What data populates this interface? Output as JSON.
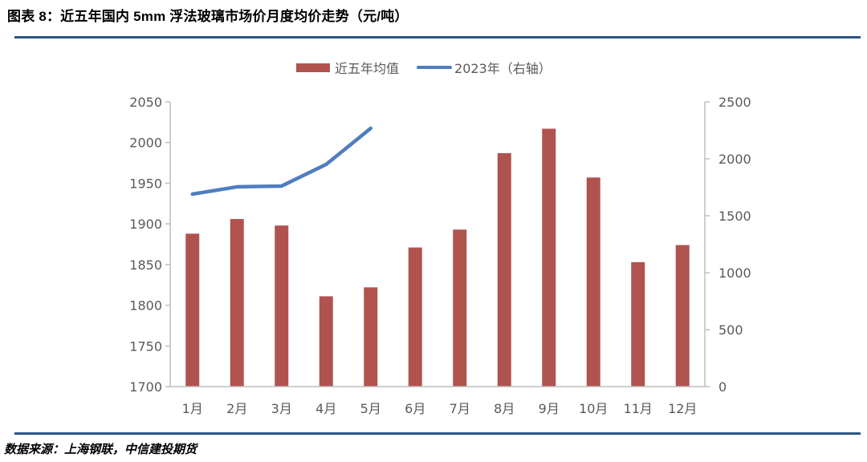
{
  "header": {
    "title": "图表 8：近五年国内 5mm 浮法玻璃市场价月度均价走势（元/吨）"
  },
  "footer": {
    "source": "数据来源：上海钢联，中信建投期货"
  },
  "legend": {
    "bar_label": "近五年均值",
    "line_label": "2023年（右轴）"
  },
  "colors": {
    "bar": "#b0534f",
    "line": "#4f7ec0",
    "rule": "#2a5683",
    "axis": "#bfbfbf",
    "tick_text": "#595959"
  },
  "chart_data": {
    "type": "bar+line",
    "title": "图表 8：近五年国内 5mm 浮法玻璃市场价月度均价走势（元/吨）",
    "categories": [
      "1月",
      "2月",
      "3月",
      "4月",
      "5月",
      "6月",
      "7月",
      "8月",
      "9月",
      "10月",
      "11月",
      "12月"
    ],
    "series": [
      {
        "name": "近五年均值",
        "type": "bar",
        "axis": "left",
        "values": [
          1888,
          1906,
          1898,
          1811,
          1822,
          1871,
          1893,
          1987,
          2017,
          1957,
          1853,
          1874
        ]
      },
      {
        "name": "2023年（右轴）",
        "type": "line",
        "axis": "right",
        "values": [
          1690,
          1754,
          1761,
          1951,
          2268,
          null,
          null,
          null,
          null,
          null,
          null,
          null
        ]
      }
    ],
    "left_axis": {
      "ylim": [
        1700,
        2050
      ],
      "ticks": [
        1700,
        1750,
        1800,
        1850,
        1900,
        1950,
        2000,
        2050
      ]
    },
    "right_axis": {
      "ylim": [
        0,
        2500
      ],
      "ticks": [
        0,
        500,
        1000,
        1500,
        2000,
        2500
      ]
    },
    "xlabel": "",
    "ylabel": "",
    "grid": false,
    "legend_position": "top"
  }
}
